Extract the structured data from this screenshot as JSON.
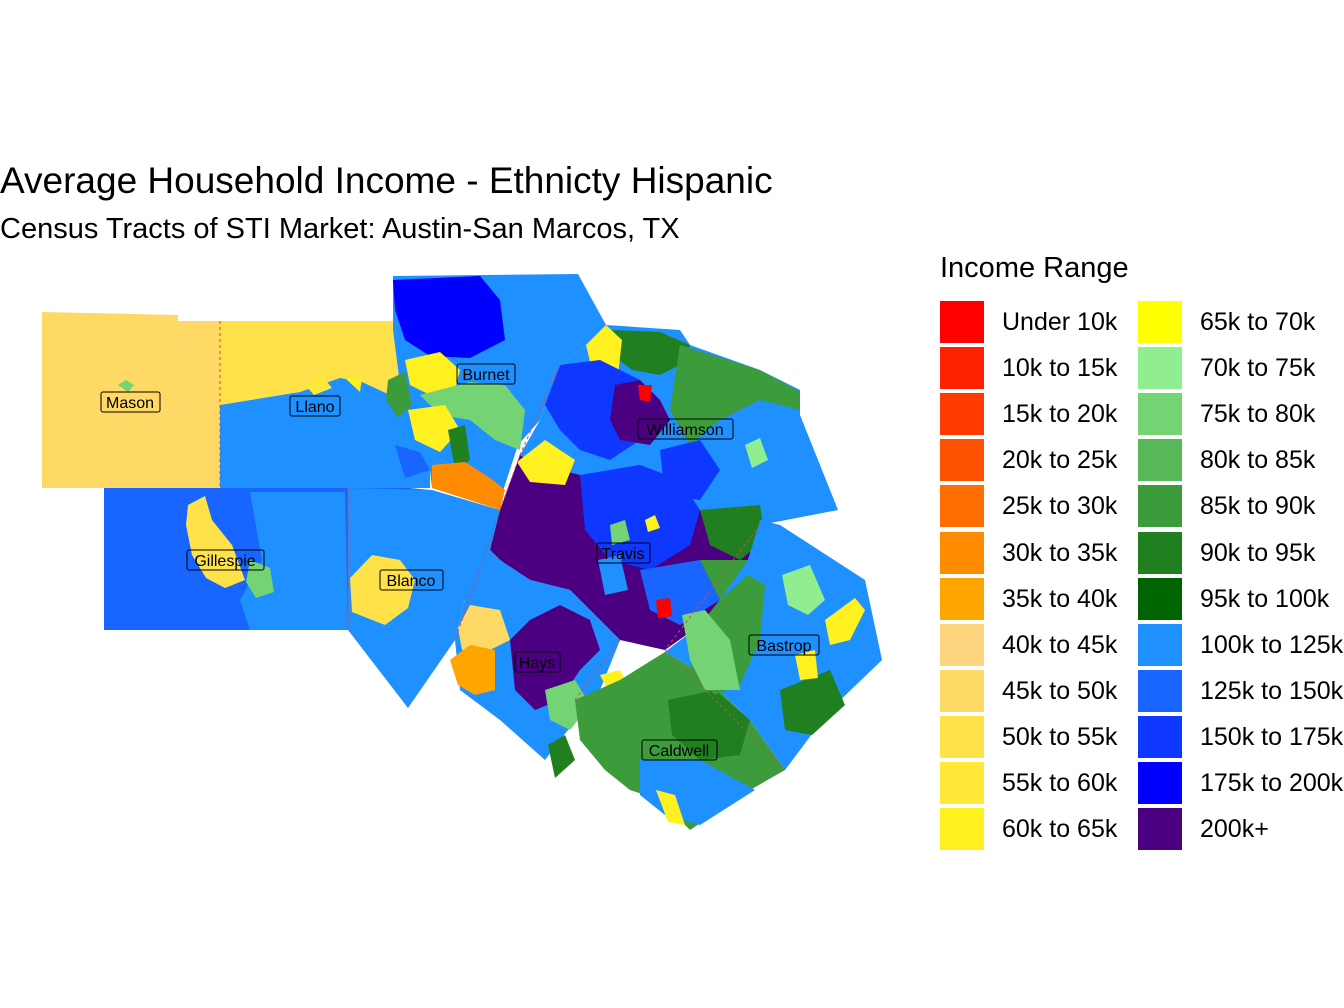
{
  "map": {
    "title": "Average Household Income - Ethnicty Hispanic",
    "subtitle": "Census Tracts of STI Market: Austin-San Marcos, TX",
    "counties": [
      {
        "name": "Mason",
        "income_range": "45k to 50k"
      },
      {
        "name": "Llano",
        "income_range": "50k to 55k"
      },
      {
        "name": "Burnet",
        "income_range": "100k to 125k"
      },
      {
        "name": "Williamson",
        "income_range": "100k to 125k"
      },
      {
        "name": "Gillespie",
        "income_range": "125k to 150k"
      },
      {
        "name": "Blanco",
        "income_range": "100k to 125k"
      },
      {
        "name": "Travis",
        "income_range": "200k+"
      },
      {
        "name": "Hays",
        "income_range": "100k to 125k"
      },
      {
        "name": "Bastrop",
        "income_range": "100k to 125k"
      },
      {
        "name": "Caldwell",
        "income_range": "85k to 90k"
      }
    ]
  },
  "legend": {
    "title": "Income Range",
    "items": [
      {
        "label": "Under 10k",
        "color": "#FF0000"
      },
      {
        "label": "10k to 15k",
        "color": "#FF2200"
      },
      {
        "label": "15k to 20k",
        "color": "#FF3A00"
      },
      {
        "label": "20k to 25k",
        "color": "#FF5200"
      },
      {
        "label": "25k to 30k",
        "color": "#FF6E00"
      },
      {
        "label": "30k to 35k",
        "color": "#FF8C00"
      },
      {
        "label": "35k to 40k",
        "color": "#FFA500"
      },
      {
        "label": "40k to 45k",
        "color": "#FFD580"
      },
      {
        "label": "45k to 50k",
        "color": "#FFD966"
      },
      {
        "label": "50k to 55k",
        "color": "#FFE24A"
      },
      {
        "label": "55k to 60k",
        "color": "#FFE838"
      },
      {
        "label": "60k to 65k",
        "color": "#FFF020"
      },
      {
        "label": "65k to 70k",
        "color": "#FFFF00"
      },
      {
        "label": "70k to 75k",
        "color": "#90EE90"
      },
      {
        "label": "75k to 80k",
        "color": "#74D474"
      },
      {
        "label": "80k to 85k",
        "color": "#58B858"
      },
      {
        "label": "85k to 90k",
        "color": "#3C9C3C"
      },
      {
        "label": "90k to 95k",
        "color": "#208020"
      },
      {
        "label": "95k to 100k",
        "color": "#006400"
      },
      {
        "label": "100k to 125k",
        "color": "#1E90FF"
      },
      {
        "label": "125k to 150k",
        "color": "#1866FF"
      },
      {
        "label": "150k to 175k",
        "color": "#0E38FF"
      },
      {
        "label": "175k to 200k",
        "color": "#0000FF"
      },
      {
        "label": "200k+",
        "color": "#4B0082"
      }
    ]
  }
}
